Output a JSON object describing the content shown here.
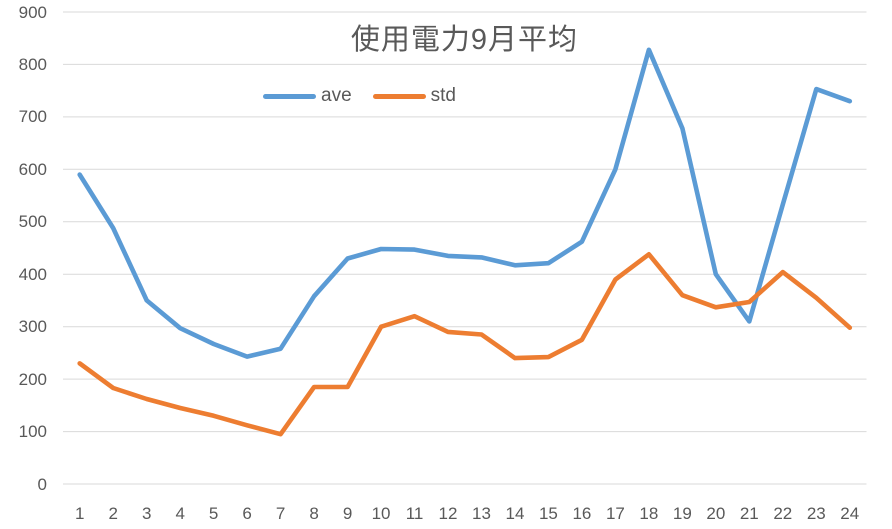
{
  "chart_data": {
    "type": "line",
    "title": "使用電力9月平均",
    "categories": [
      1,
      2,
      3,
      4,
      5,
      6,
      7,
      8,
      9,
      10,
      11,
      12,
      13,
      14,
      15,
      16,
      17,
      18,
      19,
      20,
      21,
      22,
      23,
      24
    ],
    "series": [
      {
        "name": "ave",
        "color": "#5B9BD5",
        "values": [
          590,
          488,
          350,
          297,
          267,
          243,
          258,
          358,
          430,
          448,
          447,
          435,
          432,
          417,
          421,
          462,
          600,
          828,
          678,
          400,
          310,
          533,
          753,
          730
        ]
      },
      {
        "name": "std",
        "color": "#ED7D31",
        "values": [
          230,
          183,
          162,
          145,
          130,
          112,
          95,
          185,
          185,
          300,
          320,
          290,
          285,
          240,
          242,
          275,
          390,
          438,
          360,
          337,
          347,
          404,
          355,
          298
        ]
      }
    ],
    "xlabel": "",
    "ylabel": "",
    "ylim": [
      0,
      900
    ],
    "yticks": [
      0,
      100,
      200,
      300,
      400,
      500,
      600,
      700,
      800,
      900
    ],
    "grid": true,
    "legend_position": "top"
  },
  "colors": {
    "background": "#FFFFFF",
    "gridline": "#D9D9D9",
    "text": "#595959",
    "ave": "#5B9BD5",
    "std": "#ED7D31"
  }
}
